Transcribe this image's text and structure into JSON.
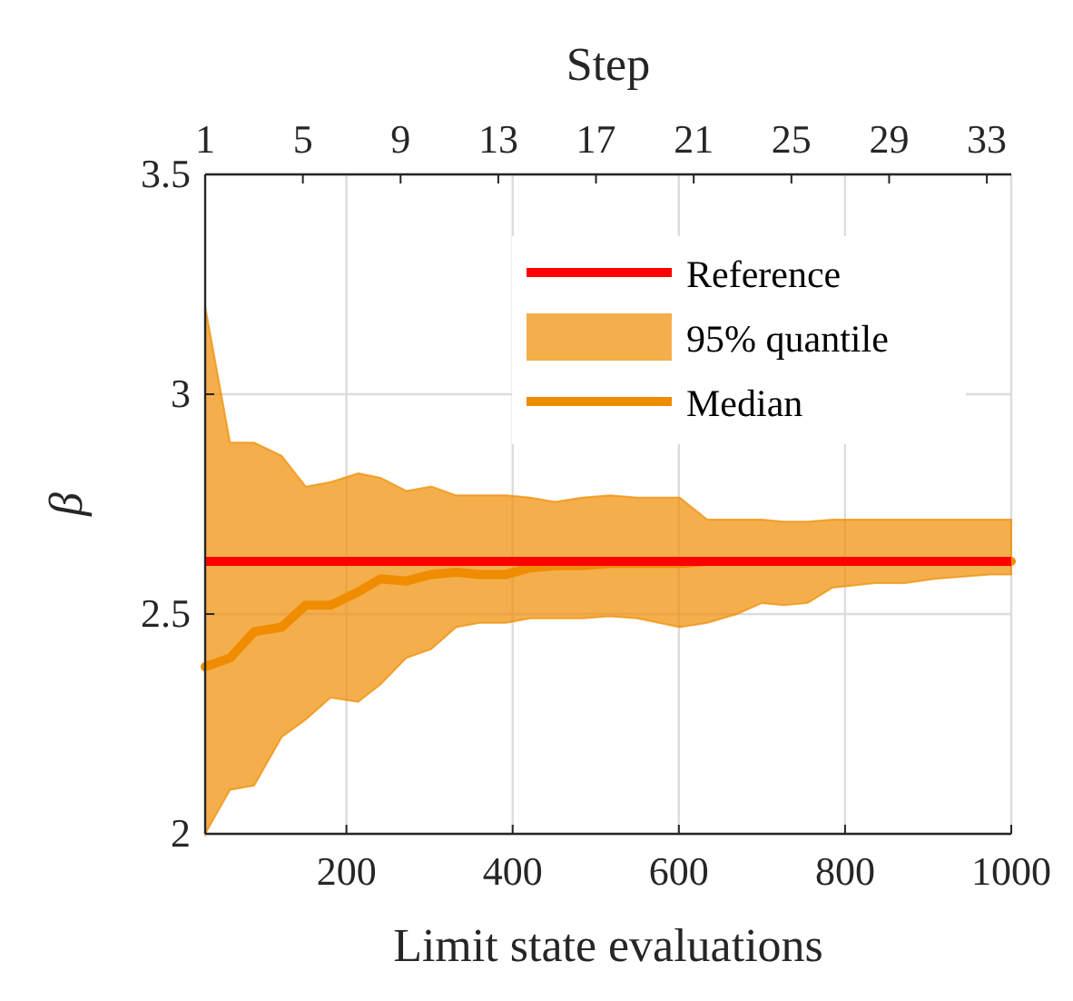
{
  "chart_data": {
    "type": "line",
    "xlabel": "Limit state evaluations",
    "ylabel": "β",
    "x2label": "Step",
    "x": [
      30,
      60,
      89,
      122,
      151,
      181,
      214,
      241,
      272,
      302,
      332,
      360,
      392,
      421,
      451,
      484,
      517,
      550,
      601,
      634,
      670,
      700,
      726,
      755,
      785,
      836,
      872,
      908,
      975,
      1000
    ],
    "series": [
      {
        "name": "Median",
        "color": "#f08c00",
        "lower": [
          2.0,
          2.1,
          2.11,
          2.22,
          2.26,
          2.31,
          2.3,
          2.34,
          2.4,
          2.42,
          2.47,
          2.48,
          2.48,
          2.49,
          2.49,
          2.49,
          2.495,
          2.49,
          2.47,
          2.48,
          2.5,
          2.525,
          2.52,
          2.525,
          2.56,
          2.57,
          2.57,
          2.58,
          2.59,
          2.59
        ],
        "upper": [
          3.2,
          2.89,
          2.89,
          2.86,
          2.79,
          2.8,
          2.82,
          2.81,
          2.78,
          2.79,
          2.77,
          2.77,
          2.77,
          2.765,
          2.755,
          2.765,
          2.77,
          2.765,
          2.765,
          2.715,
          2.715,
          2.715,
          2.71,
          2.71,
          2.715,
          2.715,
          2.715,
          2.715,
          2.715,
          2.715
        ],
        "values": [
          2.38,
          2.4,
          2.46,
          2.47,
          2.52,
          2.52,
          2.55,
          2.58,
          2.575,
          2.59,
          2.595,
          2.59,
          2.59,
          2.605,
          2.61,
          2.61,
          2.615,
          2.615,
          2.615,
          2.62,
          2.62,
          2.62,
          2.62,
          2.62,
          2.62,
          2.62,
          2.62,
          2.62,
          2.62,
          2.62
        ]
      }
    ],
    "annotations": [
      "95% quantile"
    ],
    "ref_lines": [
      {
        "axis": "y",
        "value": 2.62,
        "label": "Reference",
        "color": "#ff0000"
      }
    ],
    "xlim": [
      30,
      1000
    ],
    "xticks": [
      200,
      400,
      600,
      800,
      1000
    ],
    "x2lim": [
      1,
      34
    ],
    "x2ticks": [
      1,
      5,
      9,
      13,
      17,
      21,
      25,
      29,
      33
    ],
    "ylim": [
      2,
      3.5
    ],
    "yticks": [
      2,
      2.5,
      3,
      3.5
    ],
    "grid": true,
    "legend": "top right",
    "line_style": "solid",
    "marker": "none"
  }
}
